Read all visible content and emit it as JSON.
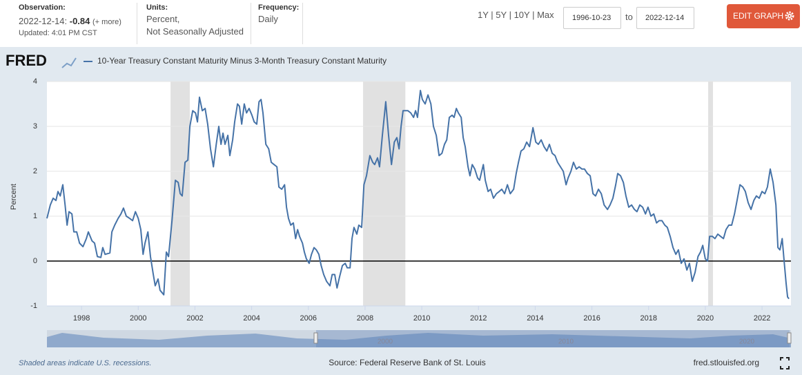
{
  "header": {
    "observation": {
      "label": "Observation:",
      "date": "2022-12-14:",
      "value": -0.84,
      "more": "(+ more)",
      "updated": "Updated: 4:01 PM CST"
    },
    "units": {
      "label": "Units:",
      "lines": [
        "Percent,",
        "Not Seasonally Adjusted"
      ]
    },
    "frequency": {
      "label": "Frequency:",
      "value": "Daily"
    },
    "ranges": [
      "1Y",
      "5Y",
      "10Y",
      "Max"
    ],
    "start": "1996-10-23",
    "to": "to",
    "end": "2022-12-14",
    "edit": "EDIT GRAPH"
  },
  "chart_data": {
    "type": "line",
    "logo": "FRED",
    "ylabel": "Percent",
    "xlim": [
      1996.78,
      2023.02
    ],
    "xticks": [
      1998,
      2000,
      2002,
      2004,
      2006,
      2008,
      2010,
      2012,
      2014,
      2016,
      2018,
      2020,
      2022
    ],
    "ylim": [
      -1,
      4
    ],
    "yticks": [
      -1,
      0,
      1,
      2,
      3,
      4
    ],
    "grid": true,
    "recessions": [
      [
        2001.14,
        2001.82
      ],
      [
        2007.93,
        2009.42
      ],
      [
        2020.1,
        2020.27
      ]
    ],
    "x": [
      1996.78,
      1996.9,
      1997,
      1997.1,
      1997.17,
      1997.25,
      1997.34,
      1997.42,
      1997.49,
      1997.56,
      1997.66,
      1997.73,
      1997.83,
      1997.93,
      1998.05,
      1998.17,
      1998.24,
      1998.37,
      1998.46,
      1998.56,
      1998.68,
      1998.75,
      1998.83,
      1999,
      1999.07,
      1999.17,
      1999.29,
      1999.39,
      1999.48,
      1999.58,
      1999.7,
      1999.8,
      1999.9,
      2000,
      2000.09,
      2000.17,
      2000.24,
      2000.34,
      2000.43,
      2000.53,
      2000.6,
      2000.7,
      2000.77,
      2000.9,
      2000.99,
      2001.07,
      2001.19,
      2001.31,
      2001.41,
      2001.48,
      2001.55,
      2001.65,
      2001.75,
      2001.82,
      2001.92,
      2002.02,
      2002.09,
      2002.16,
      2002.26,
      2002.36,
      2002.45,
      2002.55,
      2002.65,
      2002.75,
      2002.84,
      2002.92,
      2002.99,
      2003.06,
      2003.16,
      2003.23,
      2003.33,
      2003.4,
      2003.5,
      2003.57,
      2003.65,
      2003.74,
      2003.82,
      2003.91,
      2004.01,
      2004.09,
      2004.18,
      2004.26,
      2004.33,
      2004.4,
      2004.5,
      2004.6,
      2004.69,
      2004.79,
      2004.89,
      2004.96,
      2005.06,
      2005.16,
      2005.23,
      2005.3,
      2005.38,
      2005.47,
      2005.55,
      2005.62,
      2005.69,
      2005.79,
      2005.86,
      2005.93,
      2006.03,
      2006.11,
      2006.2,
      2006.28,
      2006.37,
      2006.45,
      2006.54,
      2006.64,
      2006.76,
      2006.84,
      2006.93,
      2007.01,
      2007.1,
      2007.2,
      2007.3,
      2007.37,
      2007.47,
      2007.54,
      2007.61,
      2007.71,
      2007.78,
      2007.88,
      2007.96,
      2008.05,
      2008.17,
      2008.27,
      2008.34,
      2008.44,
      2008.51,
      2008.61,
      2008.73,
      2008.83,
      2008.93,
      2009.03,
      2009.12,
      2009.2,
      2009.27,
      2009.34,
      2009.51,
      2009.61,
      2009.71,
      2009.78,
      2009.85,
      2009.95,
      2010.02,
      2010.12,
      2010.22,
      2010.32,
      2010.41,
      2010.51,
      2010.61,
      2010.71,
      2010.8,
      2010.88,
      2010.97,
      2011.07,
      2011.14,
      2011.22,
      2011.29,
      2011.39,
      2011.46,
      2011.53,
      2011.63,
      2011.7,
      2011.78,
      2011.87,
      2011.97,
      2012.04,
      2012.17,
      2012.24,
      2012.34,
      2012.43,
      2012.53,
      2012.63,
      2012.73,
      2012.82,
      2012.92,
      2013.02,
      2013.12,
      2013.24,
      2013.33,
      2013.41,
      2013.5,
      2013.6,
      2013.7,
      2013.8,
      2013.92,
      2014.02,
      2014.11,
      2014.21,
      2014.31,
      2014.41,
      2014.5,
      2014.6,
      2014.7,
      2014.79,
      2014.89,
      2014.99,
      2015.09,
      2015.16,
      2015.26,
      2015.35,
      2015.45,
      2015.55,
      2015.65,
      2015.74,
      2015.84,
      2015.94,
      2016.04,
      2016.13,
      2016.23,
      2016.33,
      2016.43,
      2016.55,
      2016.64,
      2016.74,
      2016.84,
      2016.91,
      2017.01,
      2017.11,
      2017.2,
      2017.3,
      2017.4,
      2017.5,
      2017.59,
      2017.69,
      2017.79,
      2017.89,
      2017.98,
      2018.08,
      2018.18,
      2018.28,
      2018.37,
      2018.47,
      2018.57,
      2018.66,
      2018.76,
      2018.86,
      2018.96,
      2019.05,
      2019.15,
      2019.25,
      2019.35,
      2019.44,
      2019.54,
      2019.64,
      2019.74,
      2019.83,
      2019.91,
      2020,
      2020.08,
      2020.15,
      2020.25,
      2020.34,
      2020.44,
      2020.54,
      2020.64,
      2020.73,
      2020.83,
      2020.93,
      2021.03,
      2021.12,
      2021.22,
      2021.32,
      2021.41,
      2021.51,
      2021.61,
      2021.71,
      2021.8,
      2021.9,
      2022,
      2022.1,
      2022.19,
      2022.29,
      2022.39,
      2022.49,
      2022.56,
      2022.63,
      2022.71,
      2022.78,
      2022.85,
      2022.9,
      2022.95
    ],
    "series": [
      {
        "name": "10-Year Treasury Constant Maturity Minus 3-Month Treasury Constant Maturity",
        "color": "#4572a7",
        "values": [
          0.95,
          1.25,
          1.4,
          1.35,
          1.55,
          1.45,
          1.7,
          1.25,
          0.8,
          1.1,
          1.05,
          0.65,
          0.65,
          0.4,
          0.32,
          0.5,
          0.65,
          0.45,
          0.4,
          0.1,
          0.08,
          0.3,
          0.15,
          0.18,
          0.65,
          0.8,
          0.95,
          1.05,
          1.18,
          1.0,
          0.95,
          0.9,
          1.1,
          0.95,
          0.7,
          0.15,
          0.4,
          0.65,
          0.1,
          -0.3,
          -0.55,
          -0.4,
          -0.65,
          -0.75,
          0.2,
          0.1,
          0.9,
          1.8,
          1.75,
          1.5,
          1.45,
          2.2,
          2.25,
          3.0,
          3.35,
          3.3,
          3.1,
          3.65,
          3.35,
          3.4,
          3.05,
          2.5,
          2.1,
          2.6,
          3.0,
          2.6,
          2.85,
          2.6,
          2.8,
          2.35,
          2.7,
          3.1,
          3.5,
          3.45,
          3.05,
          3.5,
          3.3,
          3.4,
          3.25,
          3.1,
          3.05,
          3.55,
          3.6,
          3.3,
          2.6,
          2.5,
          2.2,
          2.15,
          2.1,
          1.65,
          1.6,
          1.7,
          1.2,
          0.95,
          0.8,
          0.85,
          0.5,
          0.7,
          0.55,
          0.4,
          0.2,
          0.05,
          -0.05,
          0.15,
          0.3,
          0.25,
          0.15,
          -0.1,
          -0.3,
          -0.45,
          -0.55,
          -0.3,
          -0.3,
          -0.6,
          -0.35,
          -0.1,
          -0.05,
          -0.15,
          -0.15,
          0.5,
          0.75,
          0.6,
          0.8,
          0.75,
          1.7,
          1.9,
          2.35,
          2.2,
          2.15,
          2.3,
          2.1,
          2.8,
          3.55,
          2.8,
          2.15,
          2.65,
          2.75,
          2.5,
          3.0,
          3.35,
          3.35,
          3.3,
          3.2,
          3.35,
          3.2,
          3.8,
          3.6,
          3.5,
          3.7,
          3.5,
          3.0,
          2.8,
          2.35,
          2.4,
          2.6,
          2.7,
          3.2,
          3.25,
          3.2,
          3.4,
          3.3,
          3.2,
          2.75,
          2.55,
          2.1,
          1.9,
          2.15,
          2.05,
          1.85,
          1.8,
          2.15,
          1.8,
          1.55,
          1.6,
          1.4,
          1.5,
          1.55,
          1.6,
          1.5,
          1.7,
          1.5,
          1.6,
          1.95,
          2.2,
          2.45,
          2.5,
          2.65,
          2.55,
          2.97,
          2.65,
          2.6,
          2.7,
          2.55,
          2.45,
          2.6,
          2.4,
          2.35,
          2.2,
          2.1,
          2.0,
          1.7,
          1.85,
          2.0,
          2.2,
          2.05,
          2.1,
          2.05,
          2.05,
          1.95,
          1.9,
          1.5,
          1.45,
          1.6,
          1.5,
          1.25,
          1.15,
          1.25,
          1.4,
          1.7,
          1.95,
          1.9,
          1.75,
          1.45,
          1.2,
          1.25,
          1.15,
          1.1,
          1.25,
          1.2,
          1.05,
          1.2,
          1.0,
          1.05,
          0.85,
          0.9,
          0.9,
          0.8,
          0.75,
          0.55,
          0.3,
          0.15,
          0.25,
          -0.05,
          0.05,
          -0.2,
          -0.05,
          -0.45,
          -0.25,
          0.1,
          0.2,
          0.35,
          0.05,
          0.0,
          0.55,
          0.55,
          0.5,
          0.6,
          0.55,
          0.5,
          0.7,
          0.8,
          0.8,
          1.05,
          1.35,
          1.7,
          1.65,
          1.55,
          1.3,
          1.15,
          1.35,
          1.45,
          1.4,
          1.55,
          1.5,
          1.65,
          2.05,
          1.75,
          1.25,
          0.3,
          0.25,
          0.5,
          0.0,
          -0.5,
          -0.8,
          -0.84
        ]
      }
    ],
    "navigator_labels": [
      "2000",
      "2010",
      "2020"
    ]
  },
  "footer": {
    "note": "Shaded areas indicate U.S. recessions.",
    "source": "Source: Federal Reserve Bank of St. Louis",
    "site": "fred.stlouisfed.org"
  }
}
